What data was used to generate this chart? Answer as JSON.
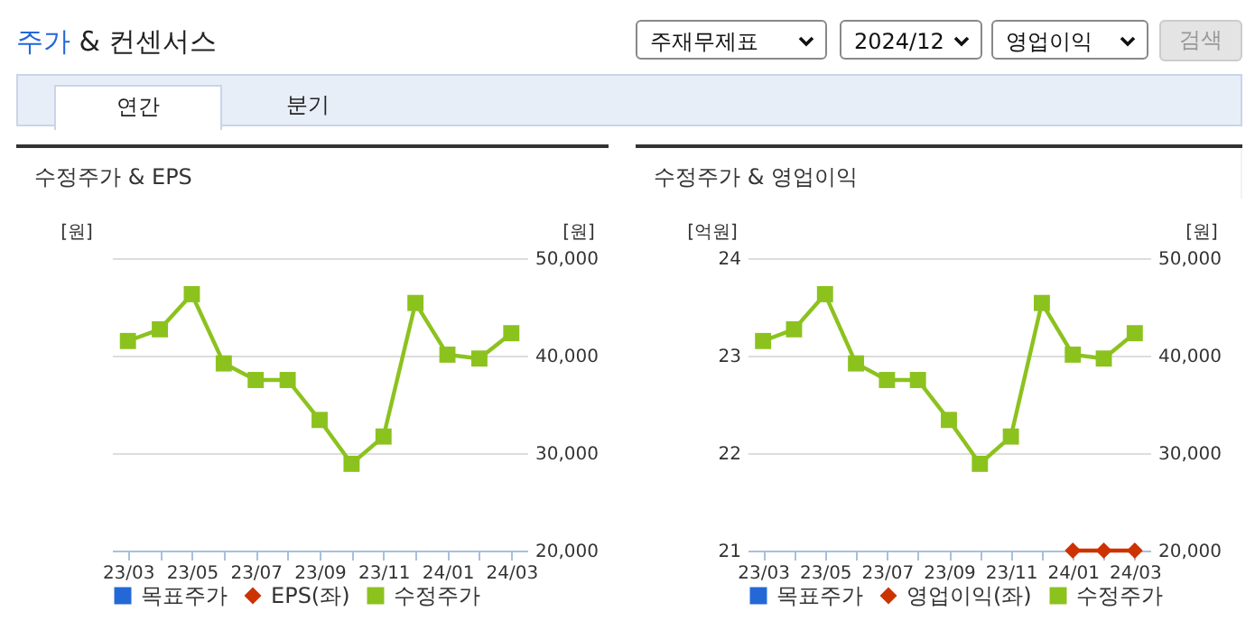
{
  "chart_data": [
    {
      "type": "line",
      "title": "수정주가 & EPS",
      "annotations": [
        "주가 & 컨센서스",
        "주재무제표",
        "2024/12",
        "영업이익",
        "검색",
        "연간",
        "분기"
      ],
      "categories": [
        "23/03",
        null,
        "23/05",
        null,
        "23/07",
        null,
        "23/09",
        null,
        "23/11",
        null,
        "24/01",
        null,
        "24/03"
      ],
      "ylabel": "[원]",
      "y2label": "[원]",
      "y2lim": [
        20000,
        50000
      ],
      "y2ticks": [
        {
          "value": 20000,
          "label": "20,000"
        },
        {
          "value": 30000,
          "label": "30,000"
        },
        {
          "value": 40000,
          "label": "40,000"
        },
        {
          "value": 50000,
          "label": "50,000"
        }
      ],
      "grid": "y",
      "legend": "bottom",
      "series": [
        {
          "name": "목표주가",
          "color": "#2468d8",
          "marker": "square",
          "values": [
            null,
            null,
            null,
            null,
            null,
            null,
            null,
            null,
            null,
            null,
            null,
            null,
            null
          ]
        },
        {
          "name": "EPS(좌)",
          "color": "#cc3300",
          "marker": "diamond",
          "values": [
            null,
            null,
            null,
            null,
            null,
            null,
            null,
            null,
            null,
            null,
            null,
            null,
            null
          ]
        },
        {
          "name": "수정주가",
          "color": "#8cc21e",
          "marker": "square",
          "axis": "y2",
          "values": [
            41500,
            42700,
            46300,
            39200,
            37500,
            37500,
            33400,
            28900,
            31700,
            45400,
            40100,
            39700,
            42300
          ]
        }
      ]
    },
    {
      "type": "line",
      "title": "수정주가 & 영업이익",
      "categories": [
        "23/03",
        null,
        "23/05",
        null,
        "23/07",
        null,
        "23/09",
        null,
        "23/11",
        null,
        "24/01",
        null,
        "24/03"
      ],
      "ylabel": "[억원]",
      "y2label": "[원]",
      "ylim": [
        21,
        24
      ],
      "yticks": [
        21,
        22,
        23,
        24
      ],
      "y2lim": [
        20000,
        50000
      ],
      "y2ticks": [
        {
          "value": 20000,
          "label": "20,000"
        },
        {
          "value": 30000,
          "label": "30,000"
        },
        {
          "value": 40000,
          "label": "40,000"
        },
        {
          "value": 50000,
          "label": "50,000"
        }
      ],
      "grid": "y",
      "legend": "bottom",
      "series": [
        {
          "name": "목표주가",
          "color": "#2468d8",
          "marker": "square",
          "values": [
            null,
            null,
            null,
            null,
            null,
            null,
            null,
            null,
            null,
            null,
            null,
            null,
            null
          ]
        },
        {
          "name": "영업이익(좌)",
          "color": "#cc3300",
          "marker": "diamond",
          "values": [
            null,
            null,
            null,
            null,
            null,
            null,
            null,
            null,
            null,
            null,
            21,
            21,
            21
          ]
        },
        {
          "name": "수정주가",
          "color": "#8cc21e",
          "marker": "square",
          "axis": "y2",
          "values": [
            41500,
            42700,
            46300,
            39200,
            37500,
            37500,
            33400,
            28900,
            31700,
            45400,
            40100,
            39700,
            42300
          ]
        }
      ]
    }
  ]
}
